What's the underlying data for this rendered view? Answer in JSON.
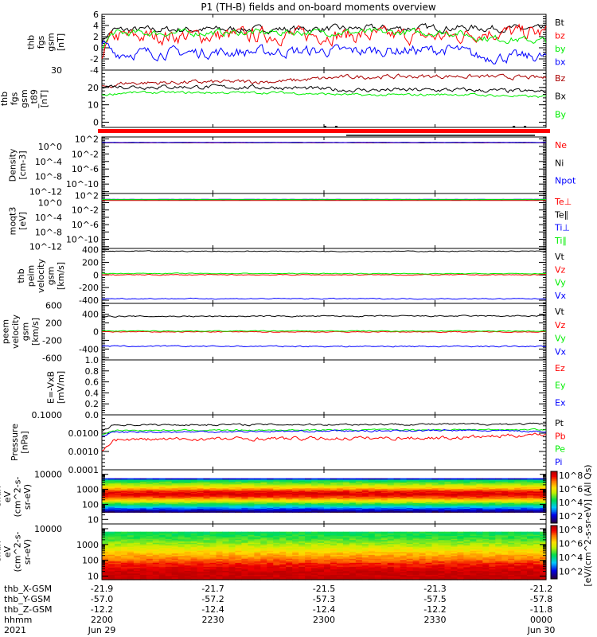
{
  "title": "P1  (TH-B) fields and on-board moments overview",
  "colorbar_label": "[eV/(cm^2-s-sr-eV)] (All Qs)",
  "colorbar_ticks": [
    "10^8",
    "10^6",
    "10^4",
    "10^2"
  ],
  "time_axis": {
    "start_hour": 22,
    "end_hour": 24,
    "ticks": [
      {
        "hour": 22.0,
        "x_gsm": "-21.9",
        "y_gsm": "-57.0",
        "z_gsm": "-12.2",
        "hhmm": "2200",
        "date": "Jun 29"
      },
      {
        "hour": 22.5,
        "x_gsm": "-21.7",
        "y_gsm": "-57.2",
        "z_gsm": "-12.4",
        "hhmm": "2230",
        "date": ""
      },
      {
        "hour": 23.0,
        "x_gsm": "-21.5",
        "y_gsm": "-57.3",
        "z_gsm": "-12.4",
        "hhmm": "2300",
        "date": ""
      },
      {
        "hour": 23.5,
        "x_gsm": "-21.3",
        "y_gsm": "-57.5",
        "z_gsm": "-12.2",
        "hhmm": "2330",
        "date": ""
      },
      {
        "hour": 24.0,
        "x_gsm": "-21.2",
        "y_gsm": "-57.8",
        "z_gsm": "-11.8",
        "hhmm": "0000",
        "date": "Jun 30"
      }
    ],
    "row_labels": [
      "thb_X-GSM",
      "thb_Y-GSM",
      "thb_Z-GSM",
      "hhmm",
      "2021"
    ]
  },
  "chart_data": [
    {
      "type": "line",
      "ylabel": [
        "thb",
        "fgs",
        "gsm",
        "[nT]"
      ],
      "scale": "linear",
      "ylim": [
        -4,
        6
      ],
      "ticks": [
        6,
        4,
        2,
        0,
        -2,
        -4
      ],
      "tick_labels": [
        "6",
        "4",
        "2",
        "0",
        "-2",
        "-4"
      ],
      "series": [
        {
          "name": "Bt",
          "color": "#000000",
          "levels": [
            [
              22.0,
              1.3
            ],
            [
              22.05,
              3.2
            ],
            [
              23.0,
              3.4
            ],
            [
              23.6,
              3.6
            ],
            [
              23.8,
              3.5
            ],
            [
              24,
              3.3
            ]
          ],
          "noise": 0.5
        },
        {
          "name": "bz",
          "color": "#ff0000",
          "levels": [
            [
              22.0,
              -1.0
            ],
            [
              22.05,
              2.0
            ],
            [
              23.0,
              2.3
            ],
            [
              23.6,
              2.0
            ],
            [
              23.7,
              2.8
            ],
            [
              24,
              2.6
            ]
          ],
          "noise": 1.1
        },
        {
          "name": "by",
          "color": "#00ee00",
          "levels": [
            [
              22.0,
              0.3
            ],
            [
              22.05,
              2.6
            ],
            [
              23.0,
              2.8
            ],
            [
              23.6,
              2.7
            ],
            [
              23.7,
              1.8
            ],
            [
              24,
              1.2
            ]
          ],
          "noise": 0.5
        },
        {
          "name": "bx",
          "color": "#0000ff",
          "levels": [
            [
              22.0,
              0.9
            ],
            [
              22.05,
              -1.0
            ],
            [
              23.0,
              -0.6
            ],
            [
              23.6,
              -0.4
            ],
            [
              23.7,
              -1.7
            ],
            [
              24,
              -1.6
            ]
          ],
          "noise": 0.8
        }
      ]
    },
    {
      "type": "line",
      "ylabel": [
        "thb",
        "fgs",
        "gsm",
        "_t89",
        "[nT]"
      ],
      "scale": "linear",
      "ylim": [
        -3,
        30
      ],
      "ticks": [
        30,
        20,
        10,
        0
      ],
      "tick_labels": [
        "30",
        "20",
        "10",
        "0"
      ],
      "series": [
        {
          "name": "Bz",
          "color": "#aa0000",
          "levels": [
            [
              22.0,
              20
            ],
            [
              22.1,
              22.5
            ],
            [
              22.8,
              23.5
            ],
            [
              23.1,
              26
            ],
            [
              23.6,
              26.5
            ],
            [
              24,
              25.5
            ]
          ],
          "noise": 1.0
        },
        {
          "name": "Bx",
          "color": "#000000",
          "levels": [
            [
              22.0,
              21
            ],
            [
              22.1,
              20.5
            ],
            [
              22.8,
              20
            ],
            [
              23.1,
              18.5
            ],
            [
              23.6,
              18.5
            ],
            [
              24,
              17.5
            ]
          ],
          "noise": 1.0
        },
        {
          "name": "By",
          "color": "#00ee00",
          "levels": [
            [
              22.0,
              15.5
            ],
            [
              22.1,
              17
            ],
            [
              22.8,
              17
            ],
            [
              23.2,
              15.5
            ],
            [
              23.6,
              16
            ],
            [
              24,
              14.5
            ]
          ],
          "noise": 0.6
        }
      ]
    },
    {
      "type": "flags"
    },
    {
      "type": "line",
      "ylabel": [
        "Density",
        "[cm-3]"
      ],
      "scale": "log",
      "ylim": [
        -12.5,
        2.5
      ],
      "ticks": [
        2,
        0,
        -2,
        -4,
        -6,
        -8,
        -10,
        -12
      ],
      "tick_labels": [
        "10^2",
        "10^0",
        "10^-2",
        "10^-4",
        "10^-6",
        "10^-8",
        "10^-10",
        "10^-12"
      ],
      "series": [
        {
          "name": "Ne",
          "color": "#ff0000",
          "levels": [
            [
              22,
              0.95
            ],
            [
              24,
              0.95
            ]
          ],
          "noise": 0.02
        },
        {
          "name": "Ni",
          "color": "#000000",
          "levels": [
            [
              22,
              1.0
            ],
            [
              24,
              1.0
            ]
          ],
          "noise": 0.02
        },
        {
          "name": "Npot",
          "color": "#0000ff",
          "levels": [
            [
              22,
              1.05
            ],
            [
              24,
              1.05
            ]
          ],
          "noise": 0.02
        }
      ]
    },
    {
      "type": "line",
      "ylabel": [
        "moqt3",
        "[eV]"
      ],
      "scale": "log",
      "ylim": [
        -12.5,
        2.5
      ],
      "ticks": [
        2,
        0,
        -2,
        -4,
        -6,
        -8,
        -10,
        -12
      ],
      "tick_labels": [
        "10^2",
        "10^0",
        "10^-2",
        "10^-4",
        "10^-6",
        "10^-8",
        "10^-10",
        "10^-12"
      ],
      "series": [
        {
          "name": "Te⊥",
          "color": "#ff0000",
          "levels": [
            [
              22,
              0.6
            ],
            [
              24,
              0.6
            ]
          ],
          "noise": 0.01
        },
        {
          "name": "Te∥",
          "color": "#000000",
          "levels": [
            [
              22,
              0.8
            ],
            [
              24,
              0.8
            ]
          ],
          "noise": 0.01
        },
        {
          "name": "Ti⊥",
          "color": "#0000ff",
          "levels": [
            [
              22,
              0.9
            ],
            [
              24,
              0.9
            ]
          ],
          "noise": 0.01
        },
        {
          "name": "Ti∥",
          "color": "#00ee00",
          "levels": [
            [
              22,
              0.85
            ],
            [
              24,
              0.85
            ]
          ],
          "noise": 0.01
        }
      ]
    },
    {
      "type": "line",
      "ylabel": [
        "thb",
        "peim",
        "velocity",
        "gsm",
        "[km/s]"
      ],
      "scale": "linear",
      "ylim": [
        -450,
        420
      ],
      "ticks": [
        400,
        200,
        0,
        -200,
        -400
      ],
      "tick_labels": [
        "400",
        "200",
        "0",
        "-200",
        "-400"
      ],
      "series": [
        {
          "name": "Vt",
          "color": "#000000",
          "levels": [
            [
              22,
              375
            ],
            [
              24,
              375
            ]
          ],
          "noise": 6
        },
        {
          "name": "Vz",
          "color": "#ff0000",
          "levels": [
            [
              22,
              2
            ],
            [
              24,
              2
            ]
          ],
          "noise": 6
        },
        {
          "name": "Vy",
          "color": "#00ee00",
          "levels": [
            [
              22,
              25
            ],
            [
              24,
              20
            ]
          ],
          "noise": 5
        },
        {
          "name": "Vx",
          "color": "#0000ff",
          "levels": [
            [
              22,
              -375
            ],
            [
              24,
              -378
            ]
          ],
          "noise": 6
        }
      ]
    },
    {
      "type": "line",
      "ylabel": [
        "thb",
        "peem",
        "velocity",
        "gsm",
        "[km/s]"
      ],
      "scale": "linear",
      "ylim": [
        -650,
        650
      ],
      "ticks": [
        600,
        400,
        200,
        0,
        -200,
        -400,
        -600
      ],
      "tick_labels": [
        "600",
        "400",
        "200",
        "0",
        "-200",
        "-400",
        "-600"
      ],
      "series": [
        {
          "name": "Vt",
          "color": "#000000",
          "levels": [
            [
              22,
              350
            ],
            [
              24,
              360
            ]
          ],
          "noise": 12
        },
        {
          "name": "Vz",
          "color": "#ff0000",
          "levels": [
            [
              22,
              -5
            ],
            [
              24,
              -5
            ]
          ],
          "noise": 8
        },
        {
          "name": "Vy",
          "color": "#00ee00",
          "levels": [
            [
              22,
              15
            ],
            [
              24,
              15
            ]
          ],
          "noise": 8
        },
        {
          "name": "Vx",
          "color": "#0000ff",
          "levels": [
            [
              22,
              -335
            ],
            [
              24,
              -340
            ]
          ],
          "noise": 12
        }
      ]
    },
    {
      "type": "line",
      "ylabel": [
        "E=-VxB",
        "[mV/m]"
      ],
      "scale": "linear",
      "ylim": [
        0,
        1
      ],
      "ticks": [
        1.0,
        0.8,
        0.6,
        0.4,
        0.2,
        0.0
      ],
      "tick_labels": [
        "1.0",
        "0.8",
        "0.6",
        "0.4",
        "0.2",
        "0.0"
      ],
      "series": [
        {
          "name": "Ez",
          "color": "#ff0000",
          "levels": [],
          "noise": 0
        },
        {
          "name": "Ey",
          "color": "#00ee00",
          "levels": [],
          "noise": 0
        },
        {
          "name": "Ex",
          "color": "#0000ff",
          "levels": [],
          "noise": 0
        }
      ]
    },
    {
      "type": "line",
      "ylabel": [
        "Pressure",
        "[nPa]"
      ],
      "scale": "log",
      "ylim": [
        -4,
        -1
      ],
      "ticks": [
        -1,
        -2,
        -3,
        -4
      ],
      "tick_labels": [
        "0.1000",
        "0.0100",
        "0.0010",
        "0.0001"
      ],
      "series": [
        {
          "name": "Pt",
          "color": "#000000",
          "levels": [
            [
              22,
              -1.9
            ],
            [
              22.05,
              -1.55
            ],
            [
              24,
              -1.5
            ]
          ],
          "noise": 0.04
        },
        {
          "name": "Pb",
          "color": "#ff0000",
          "levels": [
            [
              22,
              -3.0
            ],
            [
              22.05,
              -2.35
            ],
            [
              23.6,
              -2.25
            ],
            [
              24,
              -2.05
            ]
          ],
          "noise": 0.08
        },
        {
          "name": "Pe",
          "color": "#00ee00",
          "levels": [
            [
              22,
              -2.1
            ],
            [
              22.05,
              -1.85
            ],
            [
              24,
              -1.8
            ]
          ],
          "noise": 0.03
        },
        {
          "name": "Pi",
          "color": "#0000ff",
          "levels": [
            [
              22,
              -2.2
            ],
            [
              22.05,
              -1.95
            ],
            [
              23.6,
              -1.85
            ],
            [
              24,
              -1.9
            ]
          ],
          "noise": 0.04
        }
      ]
    },
    {
      "type": "spectrogram",
      "ylabel": [
        "thb",
        "peir",
        "en",
        "eflux",
        "eV",
        "(cm^2-s-",
        "sr-eV)"
      ],
      "ylim": [
        5,
        20000
      ],
      "ticks": [
        10000,
        1000,
        100,
        10
      ],
      "tick_labels": [
        "10000",
        "1000",
        "100",
        "10"
      ],
      "profile": [
        [
          30,
          0
        ],
        [
          80,
          0.35
        ],
        [
          120,
          0.5
        ],
        [
          200,
          0.7
        ],
        [
          300,
          0.85
        ],
        [
          500,
          0.95
        ],
        [
          800,
          0.9
        ],
        [
          1200,
          0.75
        ],
        [
          2000,
          0.6
        ],
        [
          3000,
          0.5
        ],
        [
          4500,
          0.4
        ],
        [
          5500,
          0
        ]
      ]
    },
    {
      "type": "spectrogram",
      "ylabel": [
        "thb",
        "peer",
        "en",
        "eflux",
        "eV",
        "(cm^2-s-",
        "sr-eV)"
      ],
      "ylim": [
        6,
        20000
      ],
      "ticks": [
        10000,
        1000,
        100,
        10
      ],
      "tick_labels": [
        "10000",
        "1000",
        "100",
        "10"
      ],
      "profile": [
        [
          6,
          1.0
        ],
        [
          20,
          0.98
        ],
        [
          60,
          0.9
        ],
        [
          150,
          0.8
        ],
        [
          400,
          0.7
        ],
        [
          1000,
          0.58
        ],
        [
          3000,
          0.48
        ],
        [
          6000,
          0.45
        ],
        [
          6500,
          0
        ]
      ]
    }
  ]
}
